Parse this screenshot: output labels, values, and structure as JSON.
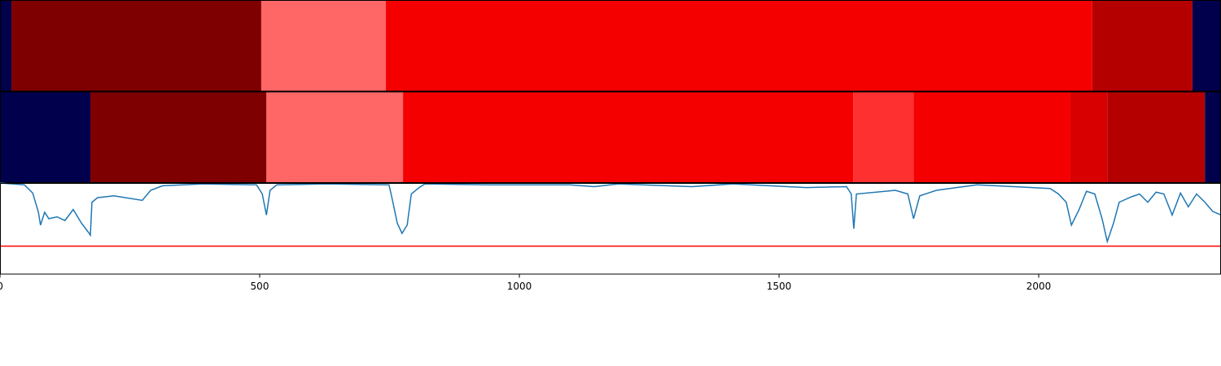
{
  "chart_data": [
    {
      "type": "segments",
      "xlim": [
        0,
        2351
      ],
      "segments": [
        {
          "start": 0,
          "end": 22,
          "color": "#00004c"
        },
        {
          "start": 22,
          "end": 503,
          "color": "#7f0000"
        },
        {
          "start": 503,
          "end": 743,
          "color": "#ff6666"
        },
        {
          "start": 743,
          "end": 2103,
          "color": "#f50000"
        },
        {
          "start": 2103,
          "end": 2296,
          "color": "#b50000"
        },
        {
          "start": 2296,
          "end": 2351,
          "color": "#00004c"
        }
      ]
    },
    {
      "type": "segments",
      "xlim": [
        0,
        2351
      ],
      "segments": [
        {
          "start": 0,
          "end": 174,
          "color": "#00004c"
        },
        {
          "start": 174,
          "end": 513,
          "color": "#7f0000"
        },
        {
          "start": 513,
          "end": 776,
          "color": "#ff6666"
        },
        {
          "start": 776,
          "end": 1643,
          "color": "#f50000"
        },
        {
          "start": 1643,
          "end": 1759,
          "color": "#ff3030"
        },
        {
          "start": 1759,
          "end": 2061,
          "color": "#f50000"
        },
        {
          "start": 2061,
          "end": 2132,
          "color": "#d80000"
        },
        {
          "start": 2132,
          "end": 2320,
          "color": "#b50000"
        },
        {
          "start": 2320,
          "end": 2351,
          "color": "#00004c"
        }
      ]
    },
    {
      "type": "line",
      "xlim": [
        0,
        2351
      ],
      "ylim": [
        0,
        1
      ],
      "color": "#1f77b4",
      "xticks": [
        0,
        500,
        1000,
        1500,
        2000
      ],
      "threshold": {
        "value": 0.31,
        "color": "#ff0000"
      },
      "x": [
        0,
        47,
        63,
        74,
        78,
        86,
        94,
        110,
        125,
        141,
        157,
        169,
        174,
        177,
        188,
        219,
        274,
        290,
        313,
        392,
        494,
        505,
        513,
        520,
        533,
        627,
        749,
        755,
        765,
        774,
        784,
        792,
        807,
        818,
        940,
        1097,
        1144,
        1191,
        1332,
        1411,
        1552,
        1630,
        1639,
        1644,
        1649,
        1724,
        1748,
        1759,
        1771,
        1803,
        1881,
        2022,
        2038,
        2053,
        2063,
        2077,
        2092,
        2108,
        2122,
        2132,
        2144,
        2155,
        2179,
        2194,
        2210,
        2226,
        2241,
        2257,
        2273,
        2288,
        2304,
        2320,
        2335,
        2351
      ],
      "values": [
        1.0,
        0.98,
        0.89,
        0.68,
        0.54,
        0.68,
        0.61,
        0.63,
        0.59,
        0.71,
        0.56,
        0.47,
        0.43,
        0.79,
        0.84,
        0.86,
        0.81,
        0.92,
        0.97,
        0.99,
        0.98,
        0.88,
        0.65,
        0.92,
        0.98,
        0.99,
        0.98,
        0.83,
        0.56,
        0.45,
        0.54,
        0.88,
        0.95,
        0.99,
        0.98,
        0.98,
        0.96,
        0.99,
        0.96,
        0.99,
        0.95,
        0.96,
        0.88,
        0.5,
        0.88,
        0.92,
        0.88,
        0.61,
        0.86,
        0.92,
        0.98,
        0.94,
        0.88,
        0.79,
        0.54,
        0.7,
        0.91,
        0.88,
        0.61,
        0.36,
        0.56,
        0.79,
        0.85,
        0.88,
        0.79,
        0.9,
        0.88,
        0.65,
        0.89,
        0.74,
        0.88,
        0.79,
        0.69,
        0.65
      ]
    }
  ]
}
